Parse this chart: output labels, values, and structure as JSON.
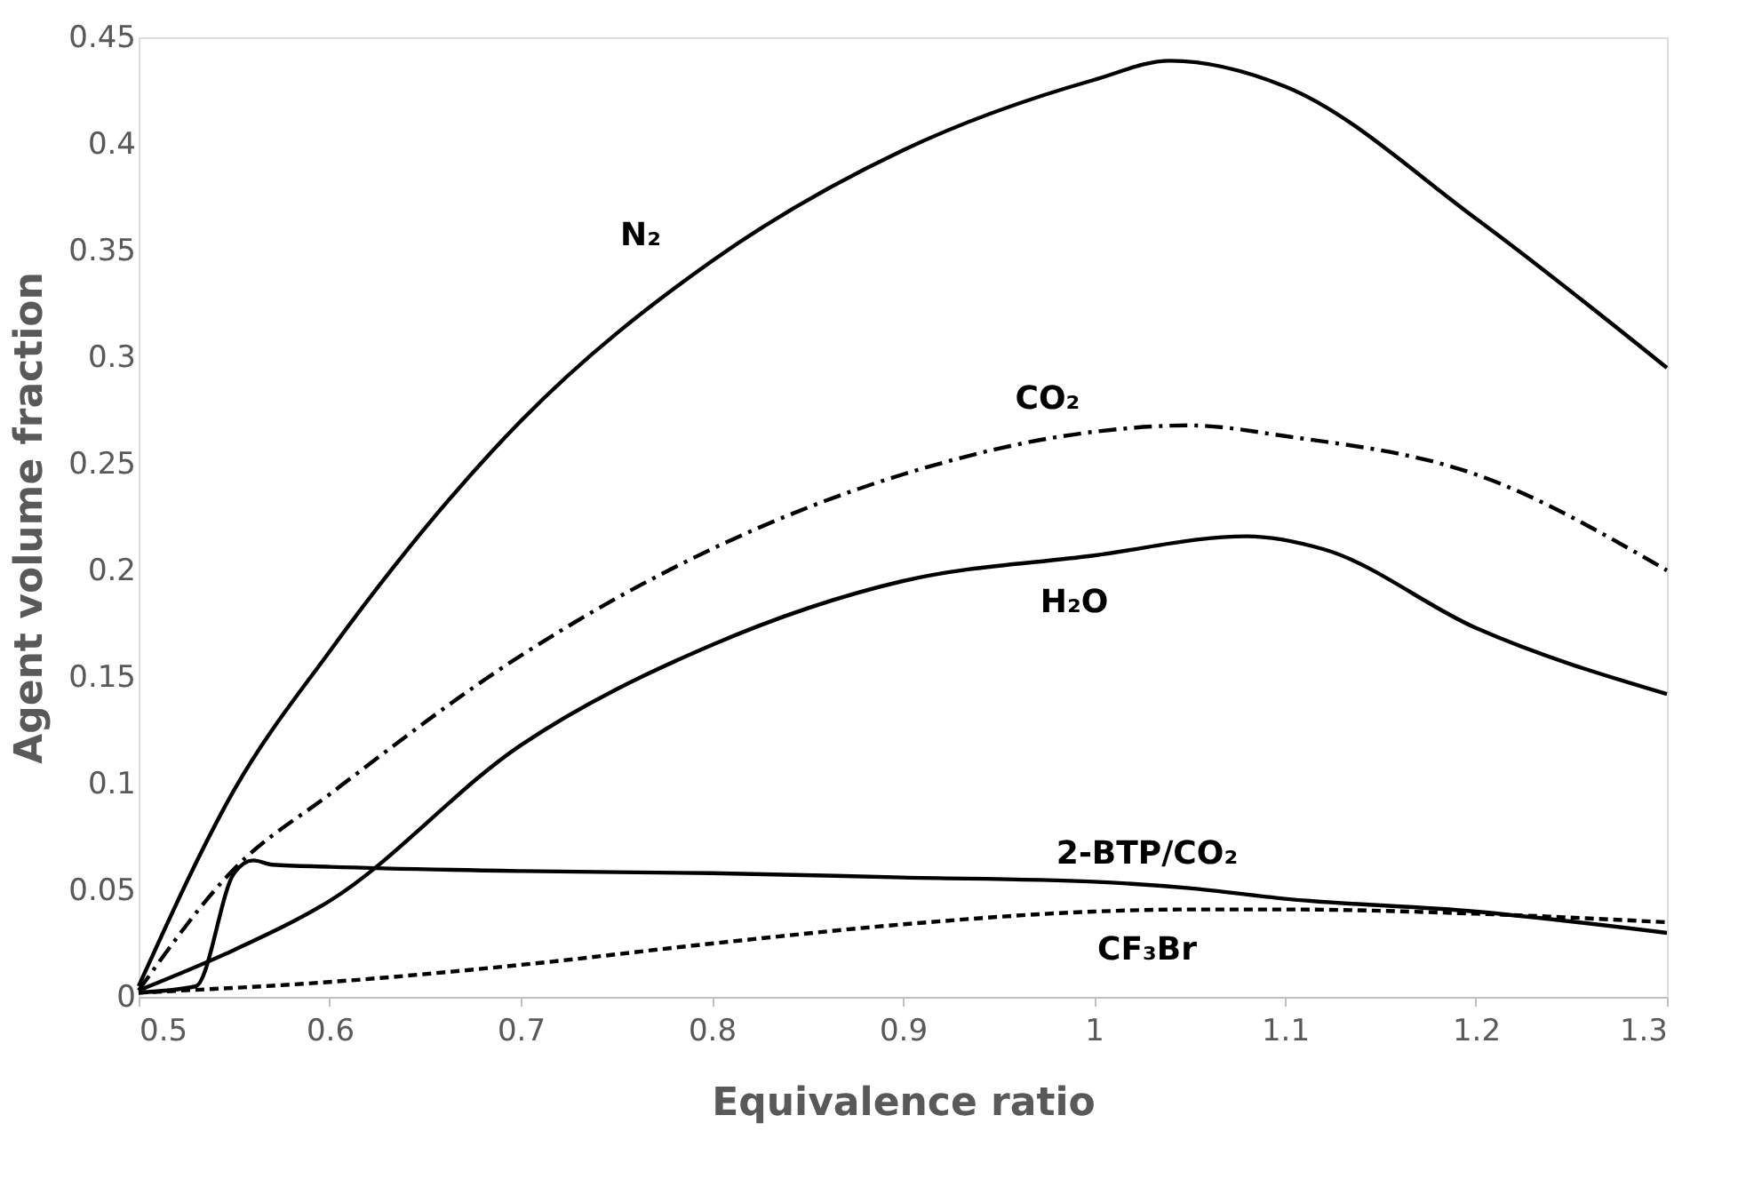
{
  "chart_data": {
    "type": "line",
    "xlabel": "Equivalence ratio",
    "ylabel": "Agent volume fraction",
    "xlim": [
      0.5,
      1.3
    ],
    "xticks": [
      0.5,
      0.6,
      0.7,
      0.8,
      0.9,
      {
        "value": 1.0,
        "label": "1"
      },
      1.1,
      1.2,
      1.3
    ],
    "ylim": [
      0,
      0.45
    ],
    "yticks": [
      0,
      0.05,
      0.1,
      0.15,
      0.2,
      0.25,
      0.3,
      0.35,
      0.4,
      0.45
    ],
    "grid": false,
    "legend": false,
    "marker": "none",
    "series": [
      {
        "name": "N₂",
        "color": "#000000",
        "line_style": "solid",
        "x": [
          0.5,
          0.55,
          0.6,
          0.7,
          0.8,
          0.9,
          1.0,
          1.04,
          1.1,
          1.2,
          1.3
        ],
        "values": [
          0.005,
          0.097,
          0.162,
          0.27,
          0.345,
          0.397,
          0.43,
          0.439,
          0.427,
          0.365,
          0.295
        ]
      },
      {
        "name": "CO₂",
        "color": "#000000",
        "line_style": "dashdot",
        "x": [
          0.5,
          0.55,
          0.6,
          0.7,
          0.8,
          0.9,
          1.0,
          1.05,
          1.1,
          1.2,
          1.3
        ],
        "values": [
          0.003,
          0.06,
          0.095,
          0.16,
          0.21,
          0.245,
          0.265,
          0.268,
          0.263,
          0.245,
          0.2
        ]
      },
      {
        "name": "H₂O",
        "color": "#000000",
        "line_style": "solid",
        "x": [
          0.5,
          0.55,
          0.6,
          0.7,
          0.8,
          0.9,
          1.0,
          1.08,
          1.12,
          1.2,
          1.3
        ],
        "values": [
          0.003,
          0.022,
          0.045,
          0.118,
          0.165,
          0.195,
          0.207,
          0.216,
          0.21,
          0.173,
          0.142
        ]
      },
      {
        "name": "2-BTP/CO₂",
        "color": "#000000",
        "line_style": "solid",
        "x": [
          0.5,
          0.53,
          0.55,
          0.56,
          0.57,
          0.6,
          0.7,
          0.8,
          0.9,
          1.0,
          1.05,
          1.1,
          1.2,
          1.3
        ],
        "values": [
          0.002,
          0.005,
          0.058,
          0.064,
          0.062,
          0.061,
          0.059,
          0.058,
          0.056,
          0.054,
          0.051,
          0.046,
          0.04,
          0.03
        ]
      },
      {
        "name": "CF₃Br",
        "color": "#000000",
        "line_style": "dashed",
        "x": [
          0.5,
          0.6,
          0.7,
          0.8,
          0.9,
          1.0,
          1.05,
          1.1,
          1.2,
          1.3
        ],
        "values": [
          0.002,
          0.007,
          0.015,
          0.025,
          0.034,
          0.04,
          0.041,
          0.041,
          0.039,
          0.035
        ]
      }
    ]
  }
}
